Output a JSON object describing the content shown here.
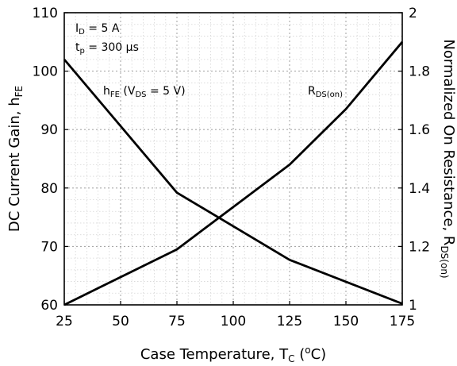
{
  "chart_data": {
    "type": "line",
    "xlabel": {
      "main": "Case Temperature, T",
      "sub": "C",
      "post": " (",
      "sup": "o",
      "end": "C)"
    },
    "ylabel_left": {
      "main": "DC Current Gain, h",
      "sub": "FE"
    },
    "ylabel_right": {
      "main": "Normalized On Resistance, R",
      "sub": "DS(on)"
    },
    "xlim": [
      25,
      175
    ],
    "ylim_left": [
      60,
      110
    ],
    "ylim_right": [
      1,
      2
    ],
    "x_ticks": [
      "25",
      "50",
      "75",
      "100",
      "125",
      "150",
      "175"
    ],
    "y_left_ticks": [
      "60",
      "70",
      "80",
      "90",
      "100",
      "110"
    ],
    "y_right_ticks": [
      "1",
      "1.2",
      "1.4",
      "1.6",
      "1.8",
      "2"
    ],
    "grid": true,
    "conditions": [
      {
        "main": "I",
        "sub": "D",
        "rest": " = 5 A"
      },
      {
        "main": "t",
        "sub": "p",
        "rest": " = 300 µs"
      }
    ],
    "series": [
      {
        "name": "hFE (VDS = 5 V)",
        "axis": "left",
        "x": [
          25,
          75,
          125,
          175
        ],
        "y": [
          102,
          79.2,
          67.7,
          60.2
        ]
      },
      {
        "name": "RDS(on)",
        "axis": "right",
        "x": [
          25,
          75,
          125,
          150,
          175
        ],
        "y": [
          1.0,
          1.19,
          1.48,
          1.67,
          1.9
        ]
      }
    ],
    "series_labels": {
      "hfe": {
        "a": "h",
        "a_sub": "FE",
        "b": " (V",
        "b_sub": "DS",
        "c": " = 5 V)"
      },
      "rds": {
        "a": "R",
        "a_sub": "DS(on)"
      }
    }
  }
}
